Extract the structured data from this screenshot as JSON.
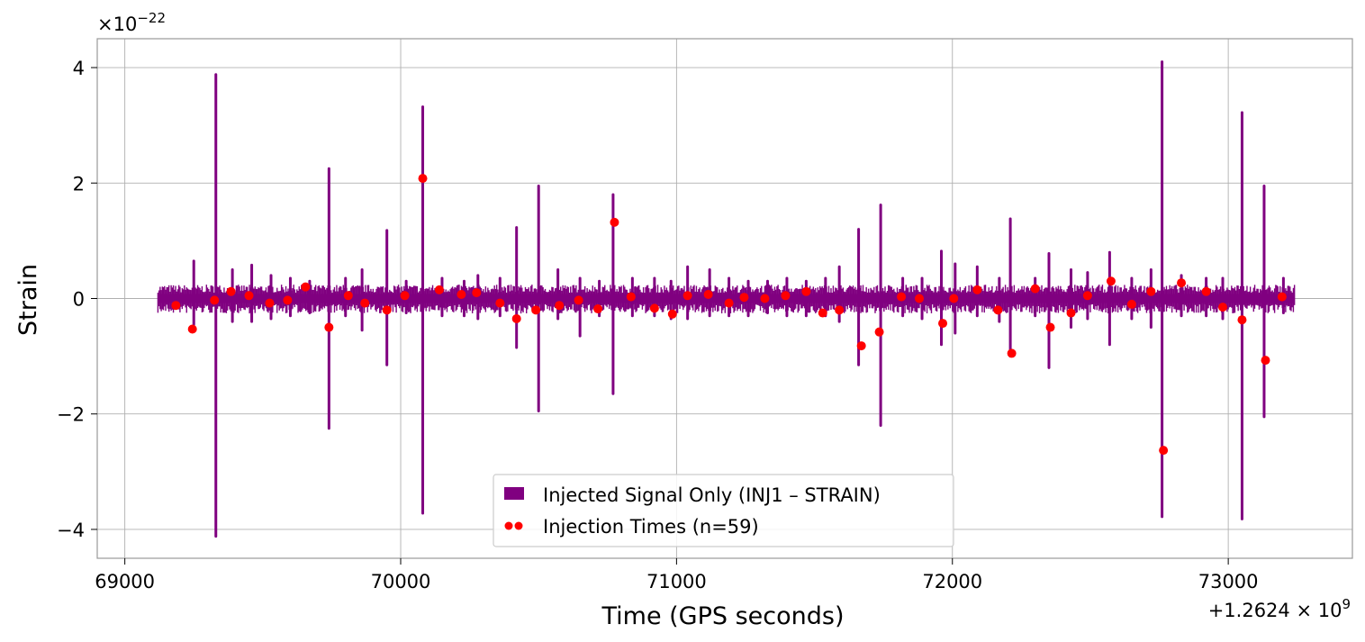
{
  "chart_data": {
    "type": "line",
    "xlabel": "Time (GPS seconds)",
    "ylabel": "Strain",
    "x_offset_label": "+1.2624 × 10^9",
    "y_scale_label": "×10^−22",
    "xlim": [
      68900,
      73450
    ],
    "ylim": [
      -4.5,
      4.5
    ],
    "x_ticks": [
      69000,
      70000,
      71000,
      72000,
      73000
    ],
    "x_tick_labels": [
      "69000",
      "70000",
      "71000",
      "72000",
      "73000"
    ],
    "y_ticks": [
      -4,
      -2,
      0,
      2,
      4
    ],
    "y_tick_labels": [
      "−4",
      "−2",
      "0",
      "2",
      "4"
    ],
    "grid": true,
    "legend_position": "bottom-center",
    "colors": {
      "signal": "#800080",
      "injection": "#ff0000",
      "grid": "#b0b0b0"
    },
    "data_range": [
      69120,
      73240
    ],
    "series": [
      {
        "name": "Injected Signal Only (INJ1 – STRAIN)",
        "kind": "signal",
        "spikes": [
          [
            69250,
            0.65,
            -0.45
          ],
          [
            69330,
            3.88,
            -4.12
          ],
          [
            69390,
            0.5,
            -0.4
          ],
          [
            69460,
            0.58,
            -0.4
          ],
          [
            69530,
            0.4,
            -0.35
          ],
          [
            69600,
            0.35,
            -0.3
          ],
          [
            69670,
            0.3,
            -0.25
          ],
          [
            69740,
            2.25,
            -2.25
          ],
          [
            69800,
            0.35,
            -0.3
          ],
          [
            69860,
            0.5,
            -0.55
          ],
          [
            69950,
            1.18,
            -1.15
          ],
          [
            70020,
            0.3,
            -0.25
          ],
          [
            70080,
            3.32,
            -3.72
          ],
          [
            70150,
            0.35,
            -0.3
          ],
          [
            70230,
            0.3,
            -0.3
          ],
          [
            70280,
            0.4,
            -0.35
          ],
          [
            70360,
            0.35,
            -0.3
          ],
          [
            70420,
            1.23,
            -0.85
          ],
          [
            70500,
            1.95,
            -1.95
          ],
          [
            70570,
            0.5,
            -0.35
          ],
          [
            70650,
            0.35,
            -0.65
          ],
          [
            70720,
            0.3,
            -0.3
          ],
          [
            70770,
            1.8,
            -1.65
          ],
          [
            70840,
            0.35,
            -0.3
          ],
          [
            70920,
            0.35,
            -0.3
          ],
          [
            70980,
            0.3,
            -0.35
          ],
          [
            71040,
            0.55,
            -0.35
          ],
          [
            71120,
            0.5,
            -0.3
          ],
          [
            71190,
            0.35,
            -0.3
          ],
          [
            71260,
            0.3,
            -0.3
          ],
          [
            71330,
            0.3,
            -0.25
          ],
          [
            71400,
            0.35,
            -0.3
          ],
          [
            71470,
            0.3,
            -0.3
          ],
          [
            71540,
            0.35,
            -0.3
          ],
          [
            71590,
            0.55,
            -0.4
          ],
          [
            71660,
            1.2,
            -1.15
          ],
          [
            71740,
            1.62,
            -2.2
          ],
          [
            71820,
            0.35,
            -0.3
          ],
          [
            71890,
            0.35,
            -0.35
          ],
          [
            71960,
            0.82,
            -0.8
          ],
          [
            72010,
            0.6,
            -0.6
          ],
          [
            72090,
            0.55,
            -0.3
          ],
          [
            72170,
            0.35,
            -0.4
          ],
          [
            72210,
            1.38,
            -1.0
          ],
          [
            72300,
            0.35,
            -0.3
          ],
          [
            72350,
            0.78,
            -1.2
          ],
          [
            72430,
            0.5,
            -0.5
          ],
          [
            72490,
            0.45,
            -0.35
          ],
          [
            72570,
            0.8,
            -0.8
          ],
          [
            72650,
            0.35,
            -0.35
          ],
          [
            72720,
            0.5,
            -0.5
          ],
          [
            72760,
            4.1,
            -3.78
          ],
          [
            72830,
            0.4,
            -0.3
          ],
          [
            72920,
            0.35,
            -0.3
          ],
          [
            72980,
            0.35,
            -0.35
          ],
          [
            73050,
            3.22,
            -3.82
          ],
          [
            73130,
            1.95,
            -2.05
          ],
          [
            73200,
            0.35,
            -0.25
          ]
        ]
      },
      {
        "name": "Injection Times (n=59)",
        "kind": "points",
        "x": [
          69185,
          69245,
          69325,
          69385,
          69450,
          69525,
          69590,
          69655,
          69740,
          69810,
          69870,
          69950,
          70015,
          70080,
          70140,
          70220,
          70275,
          70360,
          70420,
          70490,
          70575,
          70645,
          70715,
          70775,
          70835,
          70920,
          70985,
          71040,
          71115,
          71190,
          71245,
          71320,
          71395,
          71470,
          71530,
          71590,
          71670,
          71735,
          71815,
          71880,
          71965,
          72005,
          72090,
          72165,
          72215,
          72300,
          72355,
          72430,
          72490,
          72575,
          72650,
          72720,
          72765,
          72830,
          72920,
          72980,
          73050,
          73135,
          73195
        ],
        "y": [
          -0.12,
          -0.53,
          -0.03,
          0.12,
          0.05,
          -0.08,
          -0.03,
          0.2,
          -0.5,
          0.05,
          -0.08,
          -0.2,
          0.05,
          2.08,
          0.15,
          0.07,
          0.1,
          -0.08,
          -0.35,
          -0.2,
          -0.12,
          -0.03,
          -0.18,
          1.32,
          0.03,
          -0.17,
          -0.27,
          0.05,
          0.07,
          -0.08,
          0.02,
          0.0,
          0.05,
          0.12,
          -0.25,
          -0.2,
          -0.82,
          -0.58,
          0.03,
          0.0,
          -0.43,
          0.0,
          0.15,
          -0.2,
          -0.95,
          0.17,
          -0.5,
          -0.25,
          0.05,
          0.3,
          -0.1,
          0.12,
          -2.63,
          0.27,
          0.12,
          -0.15,
          -0.37,
          -1.07,
          0.03
        ]
      }
    ]
  }
}
